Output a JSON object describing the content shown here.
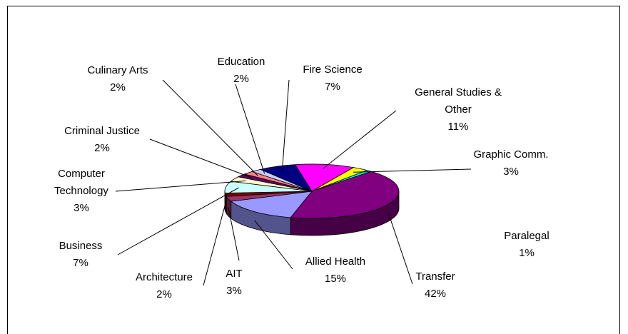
{
  "chart_data": {
    "type": "pie",
    "categories": [
      "General Studies & Other",
      "Graphic Comm.",
      "Paralegal",
      "Transfer",
      "Allied Health",
      "AIT",
      "Architecture",
      "Business",
      "Computer Technology",
      "Criminal Justice",
      "Culinary Arts",
      "Education",
      "Fire Science"
    ],
    "values": [
      11,
      3,
      1,
      42,
      15,
      3,
      2,
      7,
      3,
      2,
      2,
      2,
      7
    ],
    "value_labels": [
      "11%",
      "3%",
      "1%",
      "42%",
      "15%",
      "3%",
      "2%",
      "7%",
      "3%",
      "2%",
      "2%",
      "2%",
      "7%"
    ],
    "colors": [
      "#ff00ff",
      "#ffff00",
      "#00ffff",
      "#800080",
      "#9999ff",
      "#993366",
      "#800000",
      "#ccffff",
      "#ffffcc",
      "#660066",
      "#ff8080",
      "#ccccff",
      "#000080"
    ]
  }
}
